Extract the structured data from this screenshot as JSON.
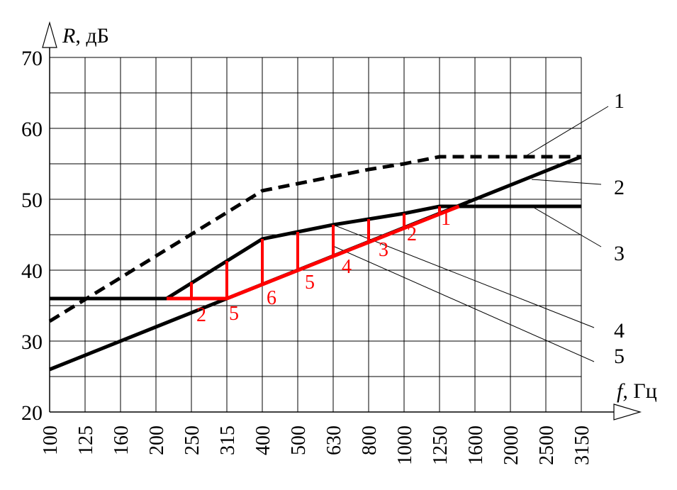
{
  "chart_data": {
    "type": "line",
    "ylabel": {
      "symbol": "R",
      "unit": ", дБ"
    },
    "xlabel": {
      "symbol": "f",
      "unit": ", Гц"
    },
    "categories": [
      "100",
      "125",
      "160",
      "200",
      "250",
      "315",
      "400",
      "500",
      "630",
      "800",
      "1000",
      "1250",
      "1600",
      "2000",
      "2500",
      "3150"
    ],
    "yticks": [
      "20",
      "30",
      "40",
      "50",
      "60",
      "70"
    ],
    "ylim": [
      20,
      70
    ],
    "grid": true,
    "series": [
      {
        "name": "1",
        "style": "dashed",
        "color": "#000000",
        "points": [
          [
            0,
            32.8
          ],
          [
            6,
            51.2
          ],
          [
            7,
            52.2
          ],
          [
            8,
            53.2
          ],
          [
            9,
            54.2
          ],
          [
            10,
            55.0
          ],
          [
            11,
            56.0
          ],
          [
            15,
            56.0
          ]
        ]
      },
      {
        "name": "2",
        "style": "solid",
        "color": "#000000",
        "points": [
          [
            0,
            26.0
          ],
          [
            15,
            56.0
          ]
        ]
      },
      {
        "name": "3",
        "style": "solid",
        "color": "#000000",
        "points": [
          [
            0,
            36.0
          ],
          [
            3.3,
            36.0
          ],
          [
            6,
            44.4
          ],
          [
            7,
            45.4
          ],
          [
            8,
            46.4
          ],
          [
            9,
            47.2
          ],
          [
            10,
            48.0
          ],
          [
            11,
            49.0
          ],
          [
            15,
            49.0
          ]
        ]
      },
      {
        "name": "4",
        "style": "solid",
        "color": "#ff0000",
        "points": [
          [
            3.3,
            36.0
          ],
          [
            5,
            36.0
          ],
          [
            11.55,
            49.0
          ]
        ]
      }
    ],
    "deviations": [
      {
        "x": 4,
        "top": 38.3,
        "bottom": 36.0,
        "label": "2"
      },
      {
        "x": 5,
        "top": 41.3,
        "bottom": 36.0,
        "label": "5"
      },
      {
        "x": 6,
        "top": 44.4,
        "bottom": 38.0,
        "label": "6"
      },
      {
        "x": 7,
        "top": 45.4,
        "bottom": 40.0,
        "label": "5"
      },
      {
        "x": 8,
        "top": 46.4,
        "bottom": 42.0,
        "label": "4"
      },
      {
        "x": 9,
        "top": 47.2,
        "bottom": 44.0,
        "label": "3"
      },
      {
        "x": 10,
        "top": 48.0,
        "bottom": 46.0,
        "label": "2"
      },
      {
        "x": 11,
        "top": 49.0,
        "bottom": 48.0,
        "label": "1"
      }
    ],
    "callouts": [
      {
        "label": "1",
        "target": [
          13.4,
          56.0
        ]
      },
      {
        "label": "2",
        "target": [
          13.6,
          52.8
        ]
      },
      {
        "label": "3",
        "target": [
          13.6,
          49.0
        ]
      },
      {
        "label": "4",
        "target": [
          8.0,
          46.4
        ]
      },
      {
        "label": "5",
        "target": [
          8.0,
          43.4
        ]
      }
    ]
  }
}
